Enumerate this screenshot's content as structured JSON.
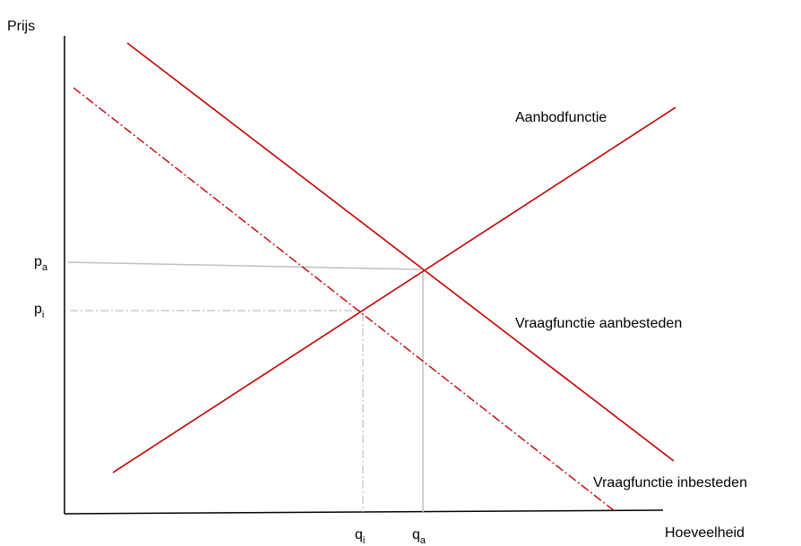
{
  "axes": {
    "y_label": "Prijs",
    "x_label": "Hoeveelheid"
  },
  "curves": {
    "supply_label": "Aanbodfunctie",
    "demand_tender_label": "Vraagfunctie aanbesteden",
    "demand_inhouse_label": "Vraagfunctie inbesteden"
  },
  "markers": {
    "p_a": {
      "base": "p",
      "sub": "a"
    },
    "p_i": {
      "base": "p",
      "sub": "i"
    },
    "q_i": {
      "base": "q",
      "sub": "i"
    },
    "q_a": {
      "base": "q",
      "sub": "a"
    }
  },
  "colors": {
    "curve": "#c00000",
    "guide": "#bfbfbf",
    "axis": "#000000"
  }
}
